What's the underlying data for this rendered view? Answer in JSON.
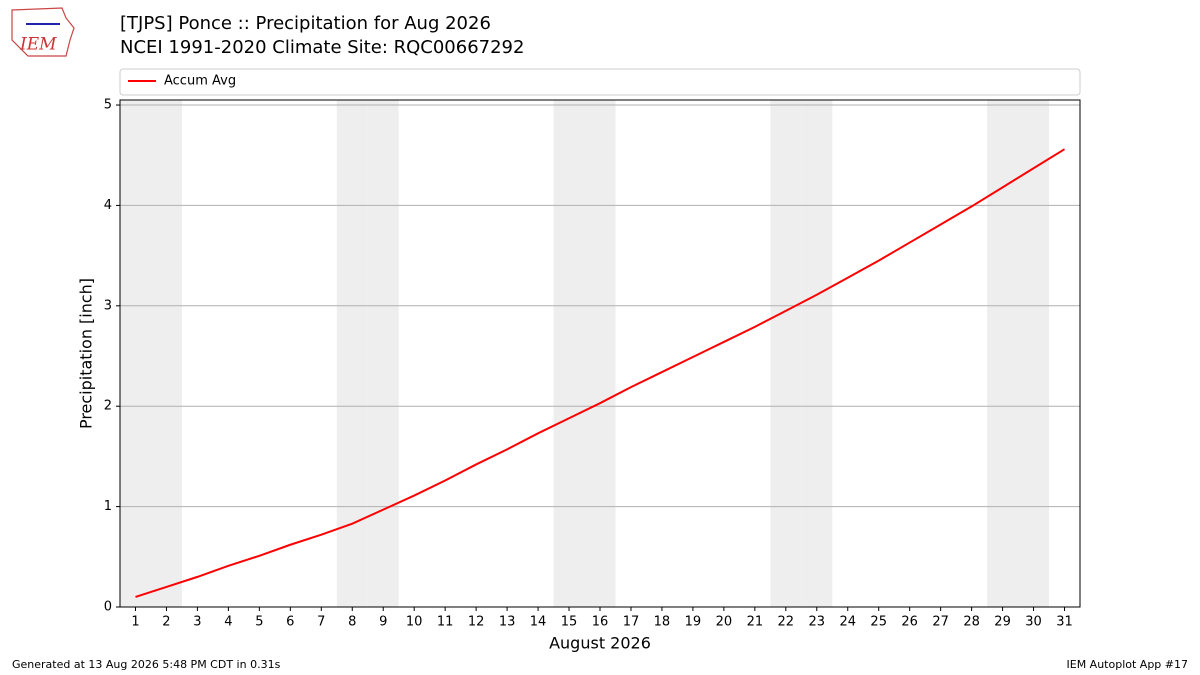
{
  "chart_data": {
    "type": "line",
    "title": "[TJPS] Ponce :: Precipitation for Aug 2026",
    "subtitle": "NCEI 1991-2020 Climate Site: RQC00667292",
    "xlabel": "August 2026",
    "ylabel": "Precipitation [inch]",
    "x": [
      1,
      2,
      3,
      4,
      5,
      6,
      7,
      8,
      9,
      10,
      11,
      12,
      13,
      14,
      15,
      16,
      17,
      18,
      19,
      20,
      21,
      22,
      23,
      24,
      25,
      26,
      27,
      28,
      29,
      30,
      31
    ],
    "series": [
      {
        "name": "Accum Avg",
        "color": "#ff0000",
        "values": [
          0.1,
          0.2,
          0.3,
          0.41,
          0.51,
          0.62,
          0.72,
          0.83,
          0.97,
          1.11,
          1.26,
          1.42,
          1.57,
          1.73,
          1.88,
          2.03,
          2.19,
          2.34,
          2.49,
          2.64,
          2.79,
          2.95,
          3.11,
          3.28,
          3.45,
          3.63,
          3.81,
          3.99,
          4.18,
          4.37,
          4.56
        ]
      }
    ],
    "xlim": [
      0.5,
      31.5
    ],
    "ylim": [
      0,
      5.05
    ],
    "xticks": [
      1,
      2,
      3,
      4,
      5,
      6,
      7,
      8,
      9,
      10,
      11,
      12,
      13,
      14,
      15,
      16,
      17,
      18,
      19,
      20,
      21,
      22,
      23,
      24,
      25,
      26,
      27,
      28,
      29,
      30,
      31
    ],
    "yticks": [
      0,
      1,
      2,
      3,
      4,
      5
    ],
    "grid": "y",
    "shaded_days": [
      1,
      2,
      8,
      9,
      15,
      16,
      22,
      23,
      29,
      30
    ],
    "shade_color": "#eeeeee",
    "legend": "top"
  },
  "page": {
    "logo": "IEM",
    "footer_left": "Generated at 13 Aug 2026 5:48 PM CDT in 0.31s",
    "footer_right": "IEM Autoplot App #17"
  }
}
